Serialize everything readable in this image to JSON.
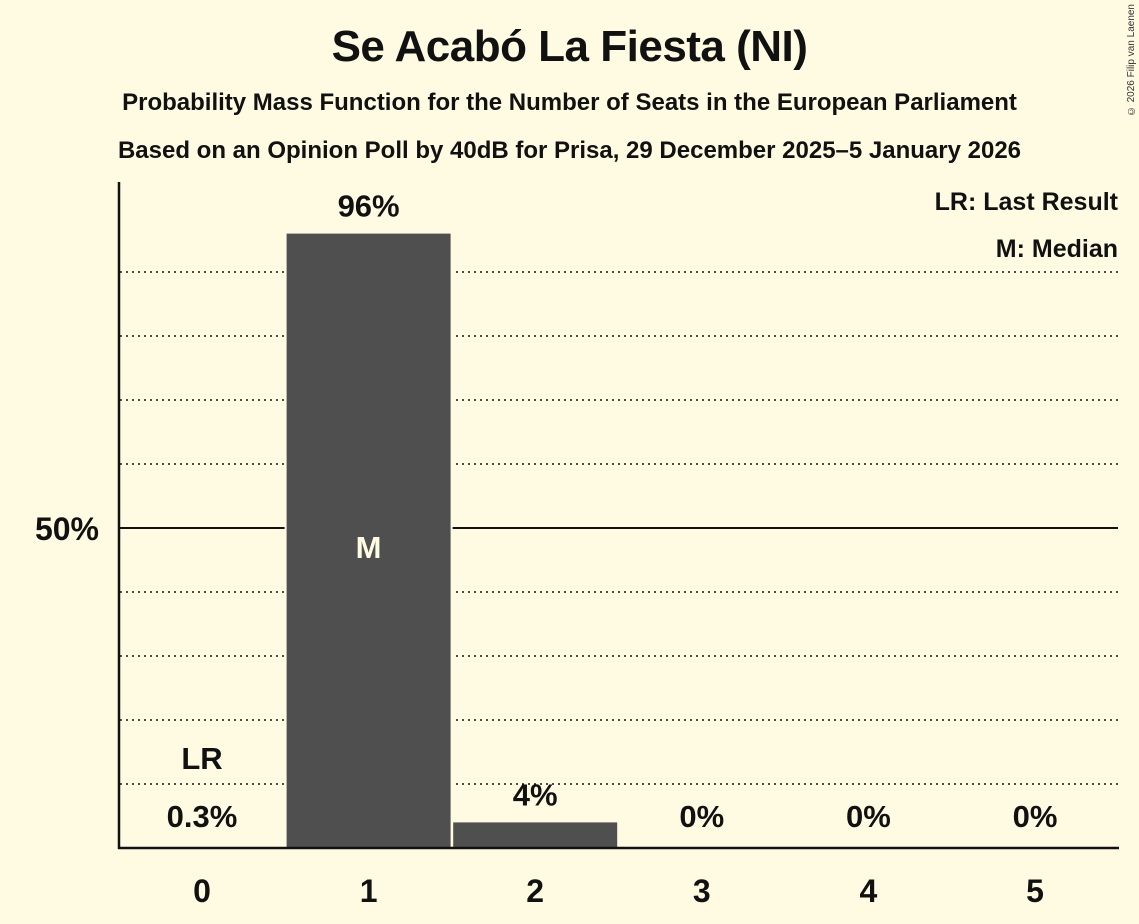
{
  "header": {
    "title": "Se Acabó La Fiesta (NI)",
    "subtitle": "Probability Mass Function for the Number of Seats in the European Parliament",
    "source": "Based on an Opinion Poll by 40dB for Prisa, 29 December 2025–5 January 2026"
  },
  "copyright": "© 2026 Filip van Laenen",
  "legend": {
    "last_result": "LR: Last Result",
    "median": "M: Median"
  },
  "y_axis": {
    "tick_label": "50%"
  },
  "markers": {
    "last_result_label": "LR",
    "median_label": "M"
  },
  "colors": {
    "background": "#FFFBE3",
    "bar": "#4F4F4F",
    "text": "#111111"
  },
  "chart_data": {
    "type": "bar",
    "title": "Se Acabó La Fiesta (NI)",
    "subtitle": "Probability Mass Function for the Number of Seats in the European Parliament",
    "caption": "Based on an Opinion Poll by 40dB for Prisa, 29 December 2025–5 January 2026",
    "xlabel": "",
    "ylabel": "",
    "categories": [
      "0",
      "1",
      "2",
      "3",
      "4",
      "5"
    ],
    "values": [
      0.3,
      96,
      4,
      0,
      0,
      0
    ],
    "value_labels": [
      "0.3%",
      "96%",
      "4%",
      "0%",
      "0%",
      "0%"
    ],
    "ylim": [
      0,
      100
    ],
    "yticks": [
      50
    ],
    "ytick_labels": [
      "50%"
    ],
    "gridlines": [
      10,
      20,
      30,
      40,
      50,
      60,
      70,
      80,
      90
    ],
    "grid": true,
    "last_result_seats": 0,
    "median_seats": 1,
    "legend": [
      "LR: Last Result",
      "M: Median"
    ],
    "legend_position": "top-right"
  }
}
